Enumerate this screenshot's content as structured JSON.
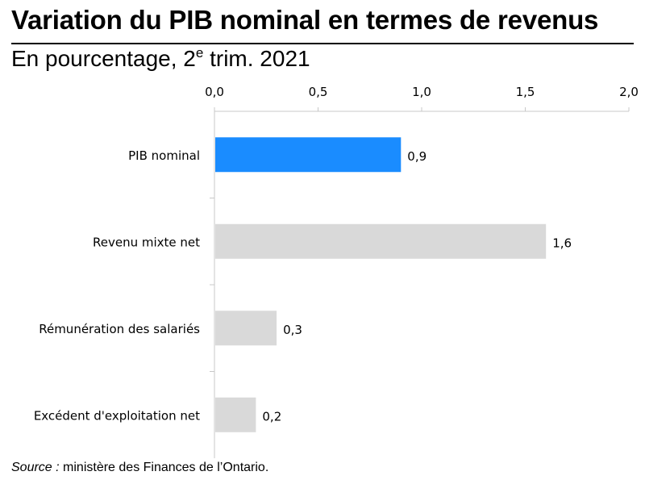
{
  "header": {
    "title": "Variation du PIB nominal en termes de revenus",
    "subtitle_prefix": "En pourcentage, 2",
    "subtitle_sup": "e",
    "subtitle_suffix": " trim. 2021"
  },
  "footer": {
    "source_label": "Source :",
    "source_text": " ministère des Finances de l’Ontario."
  },
  "chart_data": {
    "type": "bar",
    "orientation": "horizontal",
    "title": "Variation du PIB nominal en termes de revenus",
    "subtitle": "En pourcentage, 2e trim. 2021",
    "categories": [
      "PIB nominal",
      "Revenu mixte net",
      "Rémunération des salariés",
      "Excédent d'exploitation net"
    ],
    "values": [
      0.9,
      1.6,
      0.3,
      0.2
    ],
    "data_labels": [
      "0,9",
      "1,6",
      "0,3",
      "0,2"
    ],
    "highlight_index": 0,
    "xlim": [
      0,
      2.0
    ],
    "x_ticks": [
      0,
      0.5,
      1.0,
      1.5,
      2.0
    ],
    "x_tick_labels": [
      "0,0",
      "0,5",
      "1,0",
      "1,5",
      "2,0"
    ],
    "axis_position": "top",
    "grid": false,
    "xlabel": "",
    "ylabel": "",
    "colors": {
      "highlight": "#1a8cff",
      "default": "#d9d9d9",
      "axis": "#c8c8c8"
    }
  }
}
